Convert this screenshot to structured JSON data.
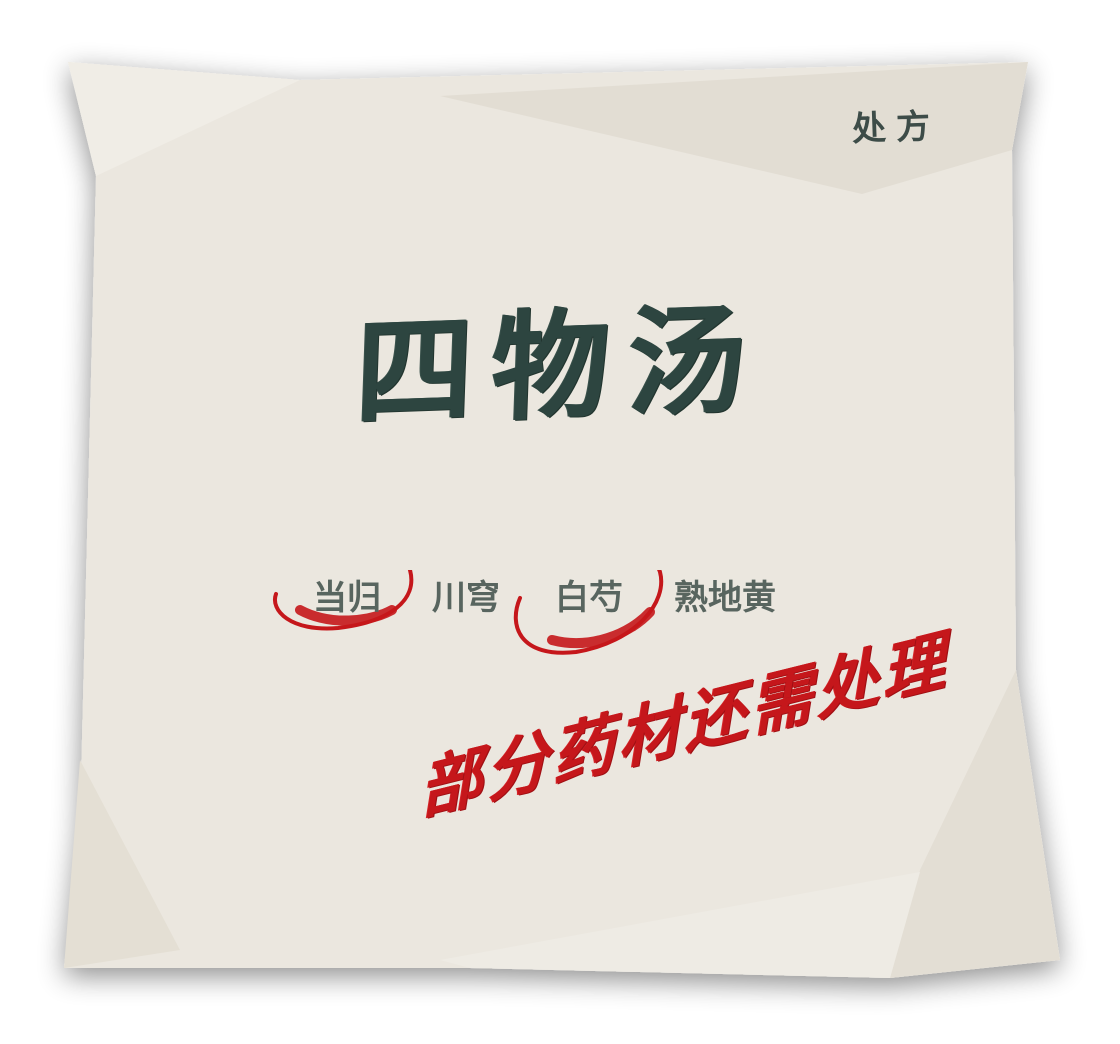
{
  "header": {
    "corner_label": "处方"
  },
  "prescription": {
    "title": "四物汤",
    "herbs": [
      {
        "name": "当归",
        "circled": true
      },
      {
        "name": "川穹",
        "circled": false
      },
      {
        "name": "白芍",
        "circled": true
      },
      {
        "name": "熟地黄",
        "circled": false
      }
    ],
    "note": "部分药材还需处理"
  },
  "colors": {
    "paper": "#ece8e0",
    "ink_green": "#2d4540",
    "ink_red": "#c5171b",
    "herb_text": "#58655f"
  }
}
